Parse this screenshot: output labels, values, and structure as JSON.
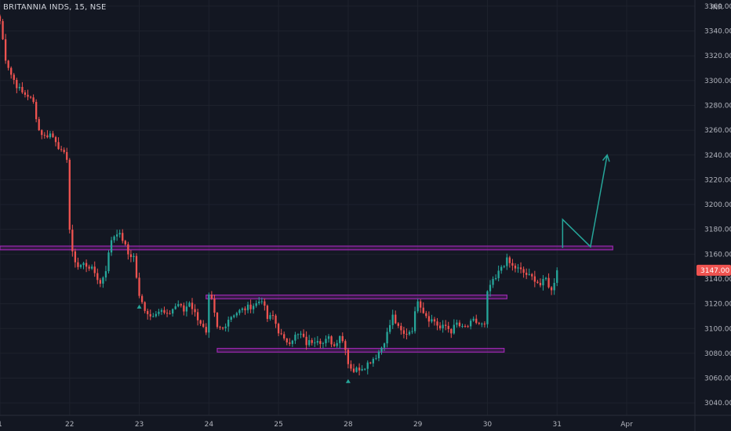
{
  "header": {
    "title": "BRITANNIA INDS, 15, NSE",
    "currency": "INR"
  },
  "colors": {
    "background": "#131722",
    "up": "#26a69a",
    "down": "#ef5350",
    "zone": "#9c27b0",
    "arrow": "#26a69a",
    "text": "#b2b5be"
  },
  "chart_data": {
    "type": "candlestick",
    "title": "BRITANNIA INDS, 15, NSE",
    "xlabel": "",
    "ylabel": "",
    "ylim": [
      3030,
      3365
    ],
    "y_ticks": [
      3360,
      3340,
      3320,
      3300,
      3280,
      3260,
      3240,
      3220,
      3200,
      3180,
      3160,
      3140,
      3120,
      3100,
      3080,
      3060,
      3040
    ],
    "y_tick_labels": [
      "3360.00",
      "3340.00",
      "3320.00",
      "3300.00",
      "3280.00",
      "3260.00",
      "3240.00",
      "3220.00",
      "3200.00",
      "3180.00",
      "3160.00",
      "3140.00",
      "3120.00",
      "3100.00",
      "3080.00",
      "3060.00",
      "3040.00"
    ],
    "x_ticks": [
      {
        "label": "1",
        "bar": 0
      },
      {
        "label": "22",
        "bar": 25
      },
      {
        "label": "23",
        "bar": 50
      },
      {
        "label": "24",
        "bar": 75
      },
      {
        "label": "25",
        "bar": 100
      },
      {
        "label": "28",
        "bar": 125
      },
      {
        "label": "29",
        "bar": 150
      },
      {
        "label": "30",
        "bar": 175
      },
      {
        "label": "31",
        "bar": 200
      },
      {
        "label": "Apr",
        "bar": 225
      }
    ],
    "bars_visible": 250,
    "last_price": 3147.0,
    "last_price_label": "3147.00",
    "close_anchors": [
      [
        0,
        3348
      ],
      [
        2,
        3318
      ],
      [
        4,
        3305
      ],
      [
        6,
        3296
      ],
      [
        8,
        3290
      ],
      [
        10,
        3288
      ],
      [
        12,
        3282
      ],
      [
        14,
        3260
      ],
      [
        16,
        3255
      ],
      [
        18,
        3257
      ],
      [
        20,
        3252
      ],
      [
        22,
        3242
      ],
      [
        24,
        3238
      ],
      [
        25,
        3180
      ],
      [
        26,
        3160
      ],
      [
        28,
        3150
      ],
      [
        30,
        3152
      ],
      [
        32,
        3150
      ],
      [
        34,
        3145
      ],
      [
        36,
        3136
      ],
      [
        38,
        3148
      ],
      [
        40,
        3172
      ],
      [
        42,
        3178
      ],
      [
        44,
        3172
      ],
      [
        46,
        3160
      ],
      [
        48,
        3158
      ],
      [
        50,
        3125
      ],
      [
        52,
        3116
      ],
      [
        54,
        3110
      ],
      [
        56,
        3114
      ],
      [
        58,
        3114
      ],
      [
        60,
        3110
      ],
      [
        62,
        3116
      ],
      [
        64,
        3120
      ],
      [
        66,
        3114
      ],
      [
        68,
        3122
      ],
      [
        70,
        3112
      ],
      [
        72,
        3105
      ],
      [
        74,
        3095
      ],
      [
        75,
        3125
      ],
      [
        76,
        3122
      ],
      [
        78,
        3100
      ],
      [
        80,
        3100
      ],
      [
        82,
        3108
      ],
      [
        84,
        3112
      ],
      [
        86,
        3114
      ],
      [
        88,
        3116
      ],
      [
        90,
        3118
      ],
      [
        92,
        3120
      ],
      [
        94,
        3124
      ],
      [
        96,
        3108
      ],
      [
        98,
        3110
      ],
      [
        100,
        3098
      ],
      [
        102,
        3090
      ],
      [
        104,
        3090
      ],
      [
        106,
        3094
      ],
      [
        108,
        3095
      ],
      [
        110,
        3088
      ],
      [
        112,
        3090
      ],
      [
        114,
        3092
      ],
      [
        116,
        3088
      ],
      [
        118,
        3092
      ],
      [
        120,
        3086
      ],
      [
        122,
        3095
      ],
      [
        124,
        3085
      ],
      [
        125,
        3072
      ],
      [
        127,
        3066
      ],
      [
        129,
        3068
      ],
      [
        131,
        3070
      ],
      [
        133,
        3074
      ],
      [
        135,
        3078
      ],
      [
        137,
        3085
      ],
      [
        139,
        3096
      ],
      [
        141,
        3110
      ],
      [
        143,
        3100
      ],
      [
        145,
        3095
      ],
      [
        147,
        3098
      ],
      [
        148,
        3100
      ],
      [
        150,
        3124
      ],
      [
        152,
        3114
      ],
      [
        154,
        3108
      ],
      [
        156,
        3106
      ],
      [
        158,
        3100
      ],
      [
        160,
        3102
      ],
      [
        162,
        3098
      ],
      [
        164,
        3104
      ],
      [
        166,
        3100
      ],
      [
        168,
        3102
      ],
      [
        170,
        3106
      ],
      [
        172,
        3104
      ],
      [
        174,
        3102
      ],
      [
        175,
        3128
      ],
      [
        176,
        3135
      ],
      [
        178,
        3140
      ],
      [
        180,
        3150
      ],
      [
        182,
        3155
      ],
      [
        184,
        3150
      ],
      [
        186,
        3148
      ],
      [
        188,
        3145
      ],
      [
        190,
        3142
      ],
      [
        192,
        3140
      ],
      [
        194,
        3135
      ],
      [
        196,
        3140
      ],
      [
        198,
        3130
      ],
      [
        200,
        3147
      ]
    ],
    "annotations": [
      {
        "type": "zone",
        "name": "upper-resistance-zone",
        "x0": 0,
        "x1": 220,
        "y0": 3163.5,
        "y1": 3166.5
      },
      {
        "type": "zone",
        "name": "range-top-zone",
        "x0": 74,
        "x1": 182,
        "y0": 3124,
        "y1": 3127
      },
      {
        "type": "zone",
        "name": "range-bottom-zone",
        "x0": 78,
        "x1": 181,
        "y0": 3081,
        "y1": 3084
      },
      {
        "type": "arrow",
        "name": "projection-arrow",
        "points": [
          [
            202,
            3165
          ],
          [
            202,
            3188
          ],
          [
            212,
            3166
          ],
          [
            218,
            3240
          ]
        ]
      },
      {
        "type": "marker",
        "name": "low-marker-1",
        "bar": 50,
        "y": 3118
      },
      {
        "type": "marker",
        "name": "low-marker-2",
        "bar": 125,
        "y": 3058
      }
    ]
  }
}
